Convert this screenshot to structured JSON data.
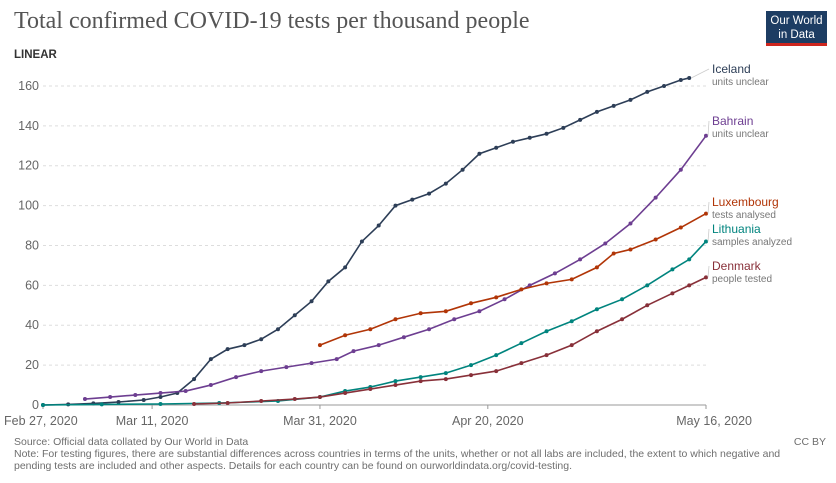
{
  "title": "Total confirmed COVID-19 tests per thousand people",
  "logo": {
    "line1": "Our World",
    "line2": "in Data"
  },
  "scale_toggle": "LINEAR",
  "source": "Source: Official data collated by Our World in Data",
  "note": "Note: For testing figures, there are substantial differences across countries in terms of the units, whether or not all labs are included, the extent to which negative and pending tests are included and other aspects. Details for each country can be found on ourworldindata.org/covid-testing.",
  "license": "CC BY",
  "chart_data": {
    "type": "line",
    "title": "Total confirmed COVID-19 tests per thousand people",
    "x_type": "date",
    "x_ticks": [
      "Feb 27, 2020",
      "Mar 11, 2020",
      "Mar 31, 2020",
      "Apr 20, 2020",
      "May 16, 2020"
    ],
    "x_tick_dates": [
      "2020-02-27",
      "2020-03-11",
      "2020-03-31",
      "2020-04-20",
      "2020-05-16"
    ],
    "xlim": [
      "2020-02-27",
      "2020-05-16"
    ],
    "ylim": [
      0,
      170
    ],
    "y_ticks": [
      0,
      20,
      40,
      60,
      80,
      100,
      120,
      140,
      160
    ],
    "grid": true,
    "legend": "right, labels at line ends",
    "series": [
      {
        "name": "Iceland",
        "unit": "units unclear",
        "color": "#2d3e57",
        "points": [
          [
            "2020-02-27",
            0
          ],
          [
            "2020-03-01",
            0.3
          ],
          [
            "2020-03-04",
            0.8
          ],
          [
            "2020-03-07",
            1.5
          ],
          [
            "2020-03-10",
            2.5
          ],
          [
            "2020-03-12",
            4
          ],
          [
            "2020-03-14",
            6
          ],
          [
            "2020-03-16",
            13
          ],
          [
            "2020-03-18",
            23
          ],
          [
            "2020-03-20",
            28
          ],
          [
            "2020-03-22",
            30
          ],
          [
            "2020-03-24",
            33
          ],
          [
            "2020-03-26",
            38
          ],
          [
            "2020-03-28",
            45
          ],
          [
            "2020-03-30",
            52
          ],
          [
            "2020-04-01",
            62
          ],
          [
            "2020-04-03",
            69
          ],
          [
            "2020-04-05",
            82
          ],
          [
            "2020-04-07",
            90
          ],
          [
            "2020-04-09",
            100
          ],
          [
            "2020-04-11",
            103
          ],
          [
            "2020-04-13",
            106
          ],
          [
            "2020-04-15",
            111
          ],
          [
            "2020-04-17",
            118
          ],
          [
            "2020-04-19",
            126
          ],
          [
            "2020-04-21",
            129
          ],
          [
            "2020-04-23",
            132
          ],
          [
            "2020-04-25",
            134
          ],
          [
            "2020-04-27",
            136
          ],
          [
            "2020-04-29",
            139
          ],
          [
            "2020-05-01",
            143
          ],
          [
            "2020-05-03",
            147
          ],
          [
            "2020-05-05",
            150
          ],
          [
            "2020-05-07",
            153
          ],
          [
            "2020-05-09",
            157
          ],
          [
            "2020-05-11",
            160
          ],
          [
            "2020-05-13",
            163
          ],
          [
            "2020-05-14",
            164
          ]
        ]
      },
      {
        "name": "Bahrain",
        "unit": "units unclear",
        "color": "#6d3e91",
        "points": [
          [
            "2020-03-03",
            3
          ],
          [
            "2020-03-06",
            4
          ],
          [
            "2020-03-09",
            5
          ],
          [
            "2020-03-12",
            6
          ],
          [
            "2020-03-15",
            7
          ],
          [
            "2020-03-18",
            10
          ],
          [
            "2020-03-21",
            14
          ],
          [
            "2020-03-24",
            17
          ],
          [
            "2020-03-27",
            19
          ],
          [
            "2020-03-30",
            21
          ],
          [
            "2020-04-02",
            23
          ],
          [
            "2020-04-04",
            27
          ],
          [
            "2020-04-07",
            30
          ],
          [
            "2020-04-10",
            34
          ],
          [
            "2020-04-13",
            38
          ],
          [
            "2020-04-16",
            43
          ],
          [
            "2020-04-19",
            47
          ],
          [
            "2020-04-22",
            53
          ],
          [
            "2020-04-25",
            60
          ],
          [
            "2020-04-28",
            66
          ],
          [
            "2020-05-01",
            73
          ],
          [
            "2020-05-04",
            81
          ],
          [
            "2020-05-07",
            91
          ],
          [
            "2020-05-10",
            104
          ],
          [
            "2020-05-13",
            118
          ],
          [
            "2020-05-16",
            135
          ]
        ]
      },
      {
        "name": "Luxembourg",
        "unit": "tests analysed",
        "color": "#b13507",
        "points": [
          [
            "2020-03-31",
            30
          ],
          [
            "2020-04-03",
            35
          ],
          [
            "2020-04-06",
            38
          ],
          [
            "2020-04-09",
            43
          ],
          [
            "2020-04-12",
            46
          ],
          [
            "2020-04-15",
            47
          ],
          [
            "2020-04-18",
            51
          ],
          [
            "2020-04-21",
            54
          ],
          [
            "2020-04-24",
            58
          ],
          [
            "2020-04-27",
            61
          ],
          [
            "2020-04-30",
            63
          ],
          [
            "2020-05-03",
            69
          ],
          [
            "2020-05-05",
            76
          ],
          [
            "2020-05-07",
            78
          ],
          [
            "2020-05-10",
            83
          ],
          [
            "2020-05-13",
            89
          ],
          [
            "2020-05-16",
            96
          ]
        ]
      },
      {
        "name": "Lithuania",
        "unit": "samples analyzed",
        "color": "#00847e",
        "points": [
          [
            "2020-02-27",
            0
          ],
          [
            "2020-03-05",
            0.3
          ],
          [
            "2020-03-12",
            0.5
          ],
          [
            "2020-03-19",
            1
          ],
          [
            "2020-03-26",
            2
          ],
          [
            "2020-03-31",
            4
          ],
          [
            "2020-04-03",
            7
          ],
          [
            "2020-04-06",
            9
          ],
          [
            "2020-04-09",
            12
          ],
          [
            "2020-04-12",
            14
          ],
          [
            "2020-04-15",
            16
          ],
          [
            "2020-04-18",
            20
          ],
          [
            "2020-04-21",
            25
          ],
          [
            "2020-04-24",
            31
          ],
          [
            "2020-04-27",
            37
          ],
          [
            "2020-04-30",
            42
          ],
          [
            "2020-05-03",
            48
          ],
          [
            "2020-05-06",
            53
          ],
          [
            "2020-05-09",
            60
          ],
          [
            "2020-05-12",
            68
          ],
          [
            "2020-05-14",
            73
          ],
          [
            "2020-05-16",
            82
          ]
        ]
      },
      {
        "name": "Denmark",
        "unit": "people tested",
        "color": "#883039",
        "points": [
          [
            "2020-03-16",
            0.5
          ],
          [
            "2020-03-20",
            1
          ],
          [
            "2020-03-24",
            2
          ],
          [
            "2020-03-28",
            3
          ],
          [
            "2020-03-31",
            4
          ],
          [
            "2020-04-03",
            6
          ],
          [
            "2020-04-06",
            8
          ],
          [
            "2020-04-09",
            10
          ],
          [
            "2020-04-12",
            12
          ],
          [
            "2020-04-15",
            13
          ],
          [
            "2020-04-18",
            15
          ],
          [
            "2020-04-21",
            17
          ],
          [
            "2020-04-24",
            21
          ],
          [
            "2020-04-27",
            25
          ],
          [
            "2020-04-30",
            30
          ],
          [
            "2020-05-03",
            37
          ],
          [
            "2020-05-06",
            43
          ],
          [
            "2020-05-09",
            50
          ],
          [
            "2020-05-12",
            56
          ],
          [
            "2020-05-14",
            60
          ],
          [
            "2020-05-16",
            64
          ]
        ]
      }
    ]
  }
}
